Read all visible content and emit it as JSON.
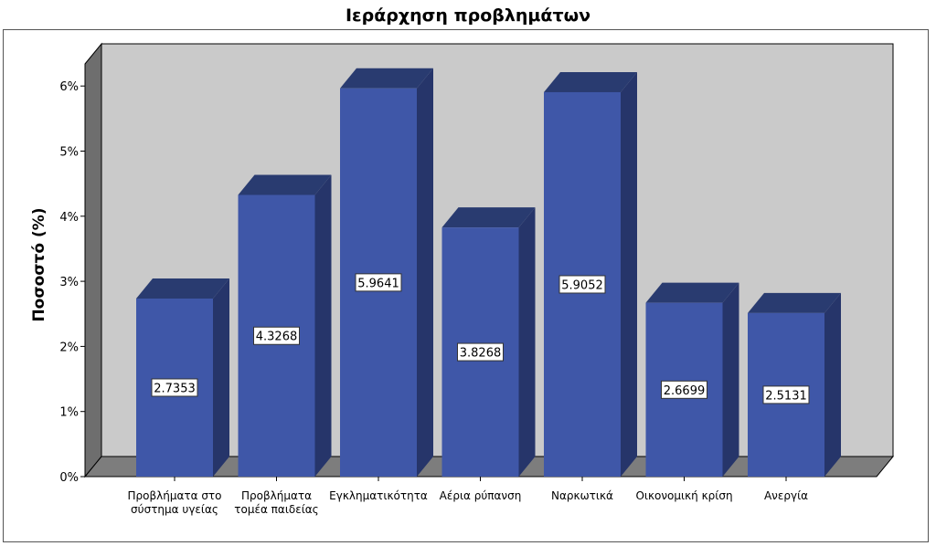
{
  "chart_data": {
    "type": "bar",
    "title": "Ιεράρχηση προβλημάτων",
    "xlabel": "",
    "ylabel": "Ποσοστό (%)",
    "ylim": [
      0,
      6
    ],
    "y_ticks": [
      "0%",
      "1%",
      "2%",
      "3%",
      "4%",
      "5%",
      "6%"
    ],
    "categories": [
      "Προβλήματα στο σύστημα υγείας",
      "Προβλήματα τομέα παιδείας",
      "Εγκληματικότητα",
      "Αέρια ρύπανση",
      "Ναρκωτικά",
      "Οικονομική κρίση",
      "Ανεργία"
    ],
    "category_lines": [
      [
        "Προβλήματα στο",
        "σύστημα υγείας"
      ],
      [
        "Προβλήματα",
        "τομέα παιδείας"
      ],
      [
        "Εγκληματικότητα"
      ],
      [
        "Αέρια ρύπανση"
      ],
      [
        "Ναρκωτικά"
      ],
      [
        "Οικονομική κρίση"
      ],
      [
        "Ανεργία"
      ]
    ],
    "values": [
      2.7353,
      4.3268,
      5.9641,
      3.8268,
      5.9052,
      2.6699,
      2.5131
    ],
    "data_labels": [
      "2.7353",
      "4.3268",
      "5.9641",
      "3.8268",
      "5.9052",
      "2.6699",
      "2.5131"
    ],
    "grid": false,
    "style": "3d",
    "colors": {
      "bar_front": "#3f57a8",
      "bar_top": "#293b70",
      "bar_side": "#26356a",
      "wall": "#cacaca",
      "side_wall": "#6e6e6e",
      "floor": "#7d7d7d"
    }
  }
}
